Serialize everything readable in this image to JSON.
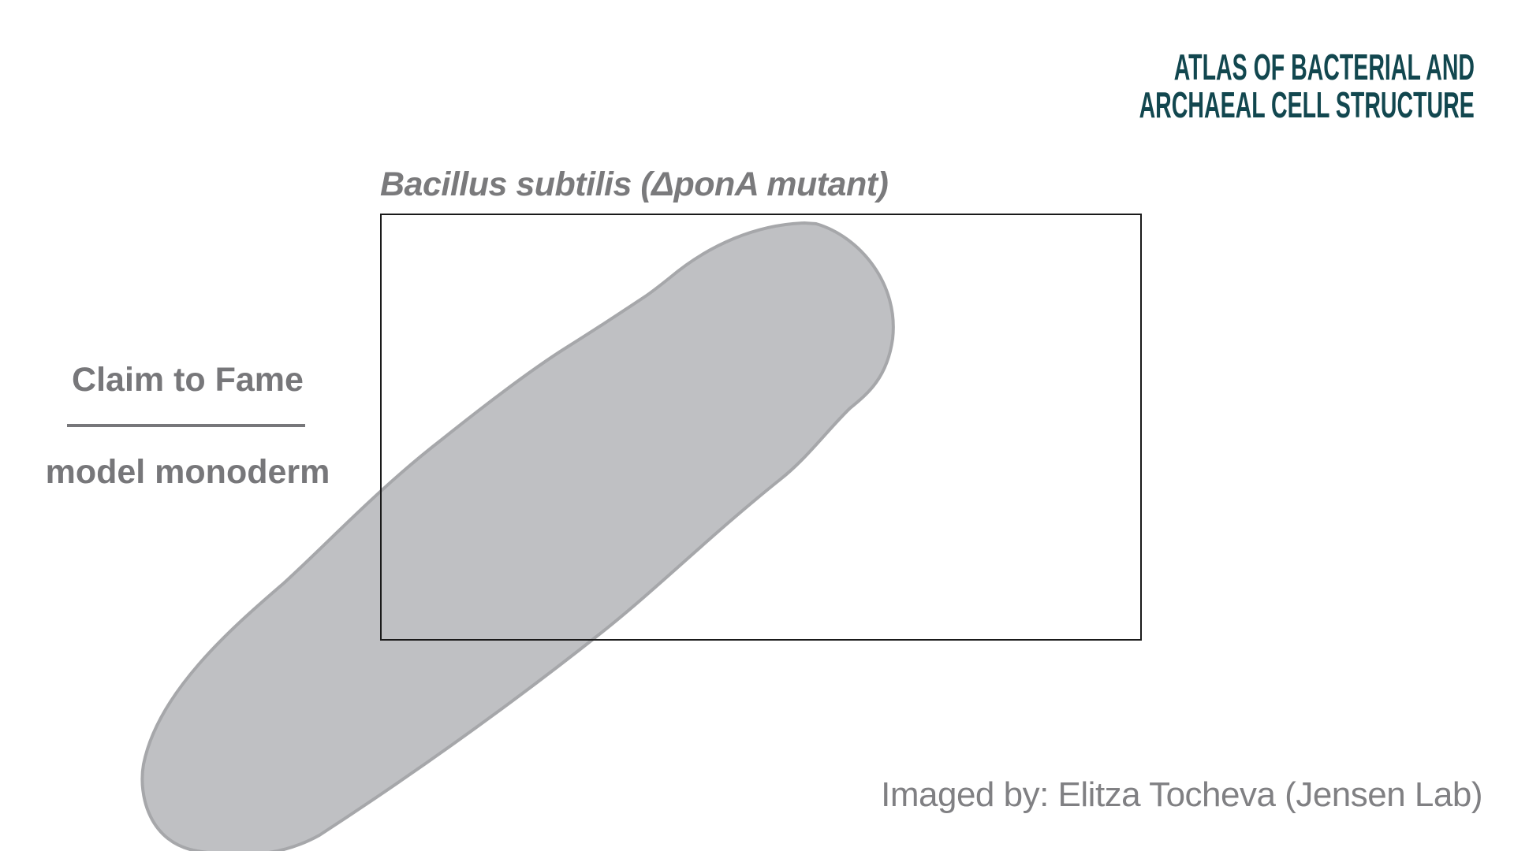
{
  "species_title": "Bacillus subtilis (ΔponA mutant)",
  "claim": {
    "heading": "Claim to Fame",
    "value": "model monoderm"
  },
  "credit": "Imaged by: Elitza Tocheva (Jensen Lab)",
  "logo": {
    "line1": "ATLAS OF BACTERIAL AND",
    "line2": "ARCHAEAL CELL STRUCTURE"
  },
  "colors": {
    "text_gray": "#77777a",
    "cell_fill": "#bfc0c3",
    "cell_stroke": "#a6a7aa",
    "logo_teal": "#12474f",
    "frame": "#1a1a1a"
  }
}
